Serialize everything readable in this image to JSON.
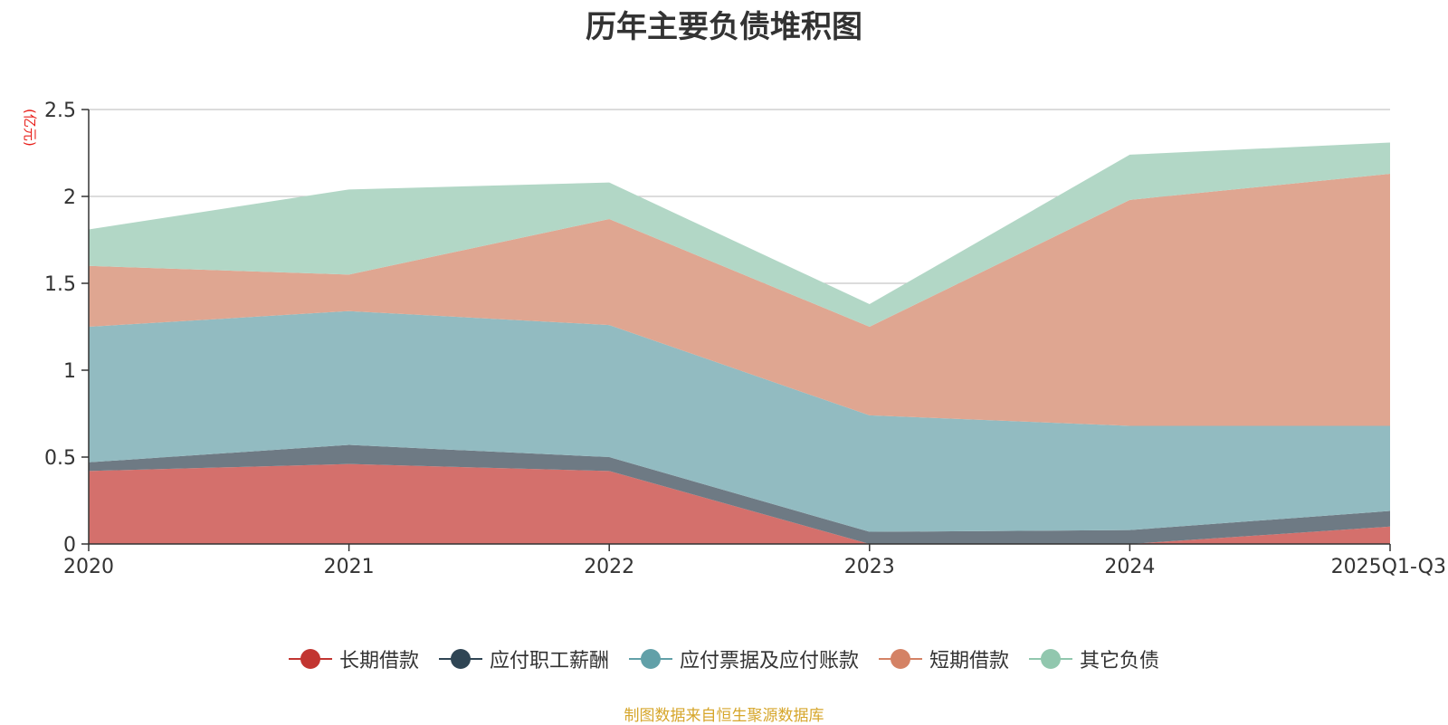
{
  "chart_data": {
    "type": "area",
    "stacked": true,
    "title": "历年主要负债堆积图",
    "unit_label": "(亿元)",
    "categories": [
      "2020",
      "2021",
      "2022",
      "2023",
      "2024",
      "2025Q1-Q3"
    ],
    "ylim": [
      0,
      2.5
    ],
    "yticks": [
      0,
      0.5,
      1,
      1.5,
      2,
      2.5
    ],
    "ytick_labels": [
      "0",
      "0.5",
      "1",
      "1.5",
      "2",
      "2.5"
    ],
    "grid": true,
    "legend_position": "bottom-center",
    "series": [
      {
        "name": "长期借款",
        "color": "#c23531",
        "fill": "#d4706c",
        "values": [
          0.42,
          0.46,
          0.42,
          0.0,
          0.0,
          0.1
        ]
      },
      {
        "name": "应付职工薪酬",
        "color": "#2f4554",
        "fill": "#6e7a84",
        "values": [
          0.05,
          0.11,
          0.08,
          0.07,
          0.08,
          0.09
        ]
      },
      {
        "name": "应付票据及应付账款",
        "color": "#61a0a8",
        "fill": "#92bbc1",
        "values": [
          0.78,
          0.77,
          0.76,
          0.67,
          0.6,
          0.49
        ]
      },
      {
        "name": "短期借款",
        "color": "#d48265",
        "fill": "#dfa691",
        "values": [
          0.35,
          0.21,
          0.61,
          0.51,
          1.3,
          1.45
        ]
      },
      {
        "name": "其它负债",
        "color": "#91c7ae",
        "fill": "#b2d7c6",
        "values": [
          0.21,
          0.49,
          0.21,
          0.13,
          0.26,
          0.18
        ]
      }
    ]
  },
  "source_text": "制图数据来自恒生聚源数据库"
}
